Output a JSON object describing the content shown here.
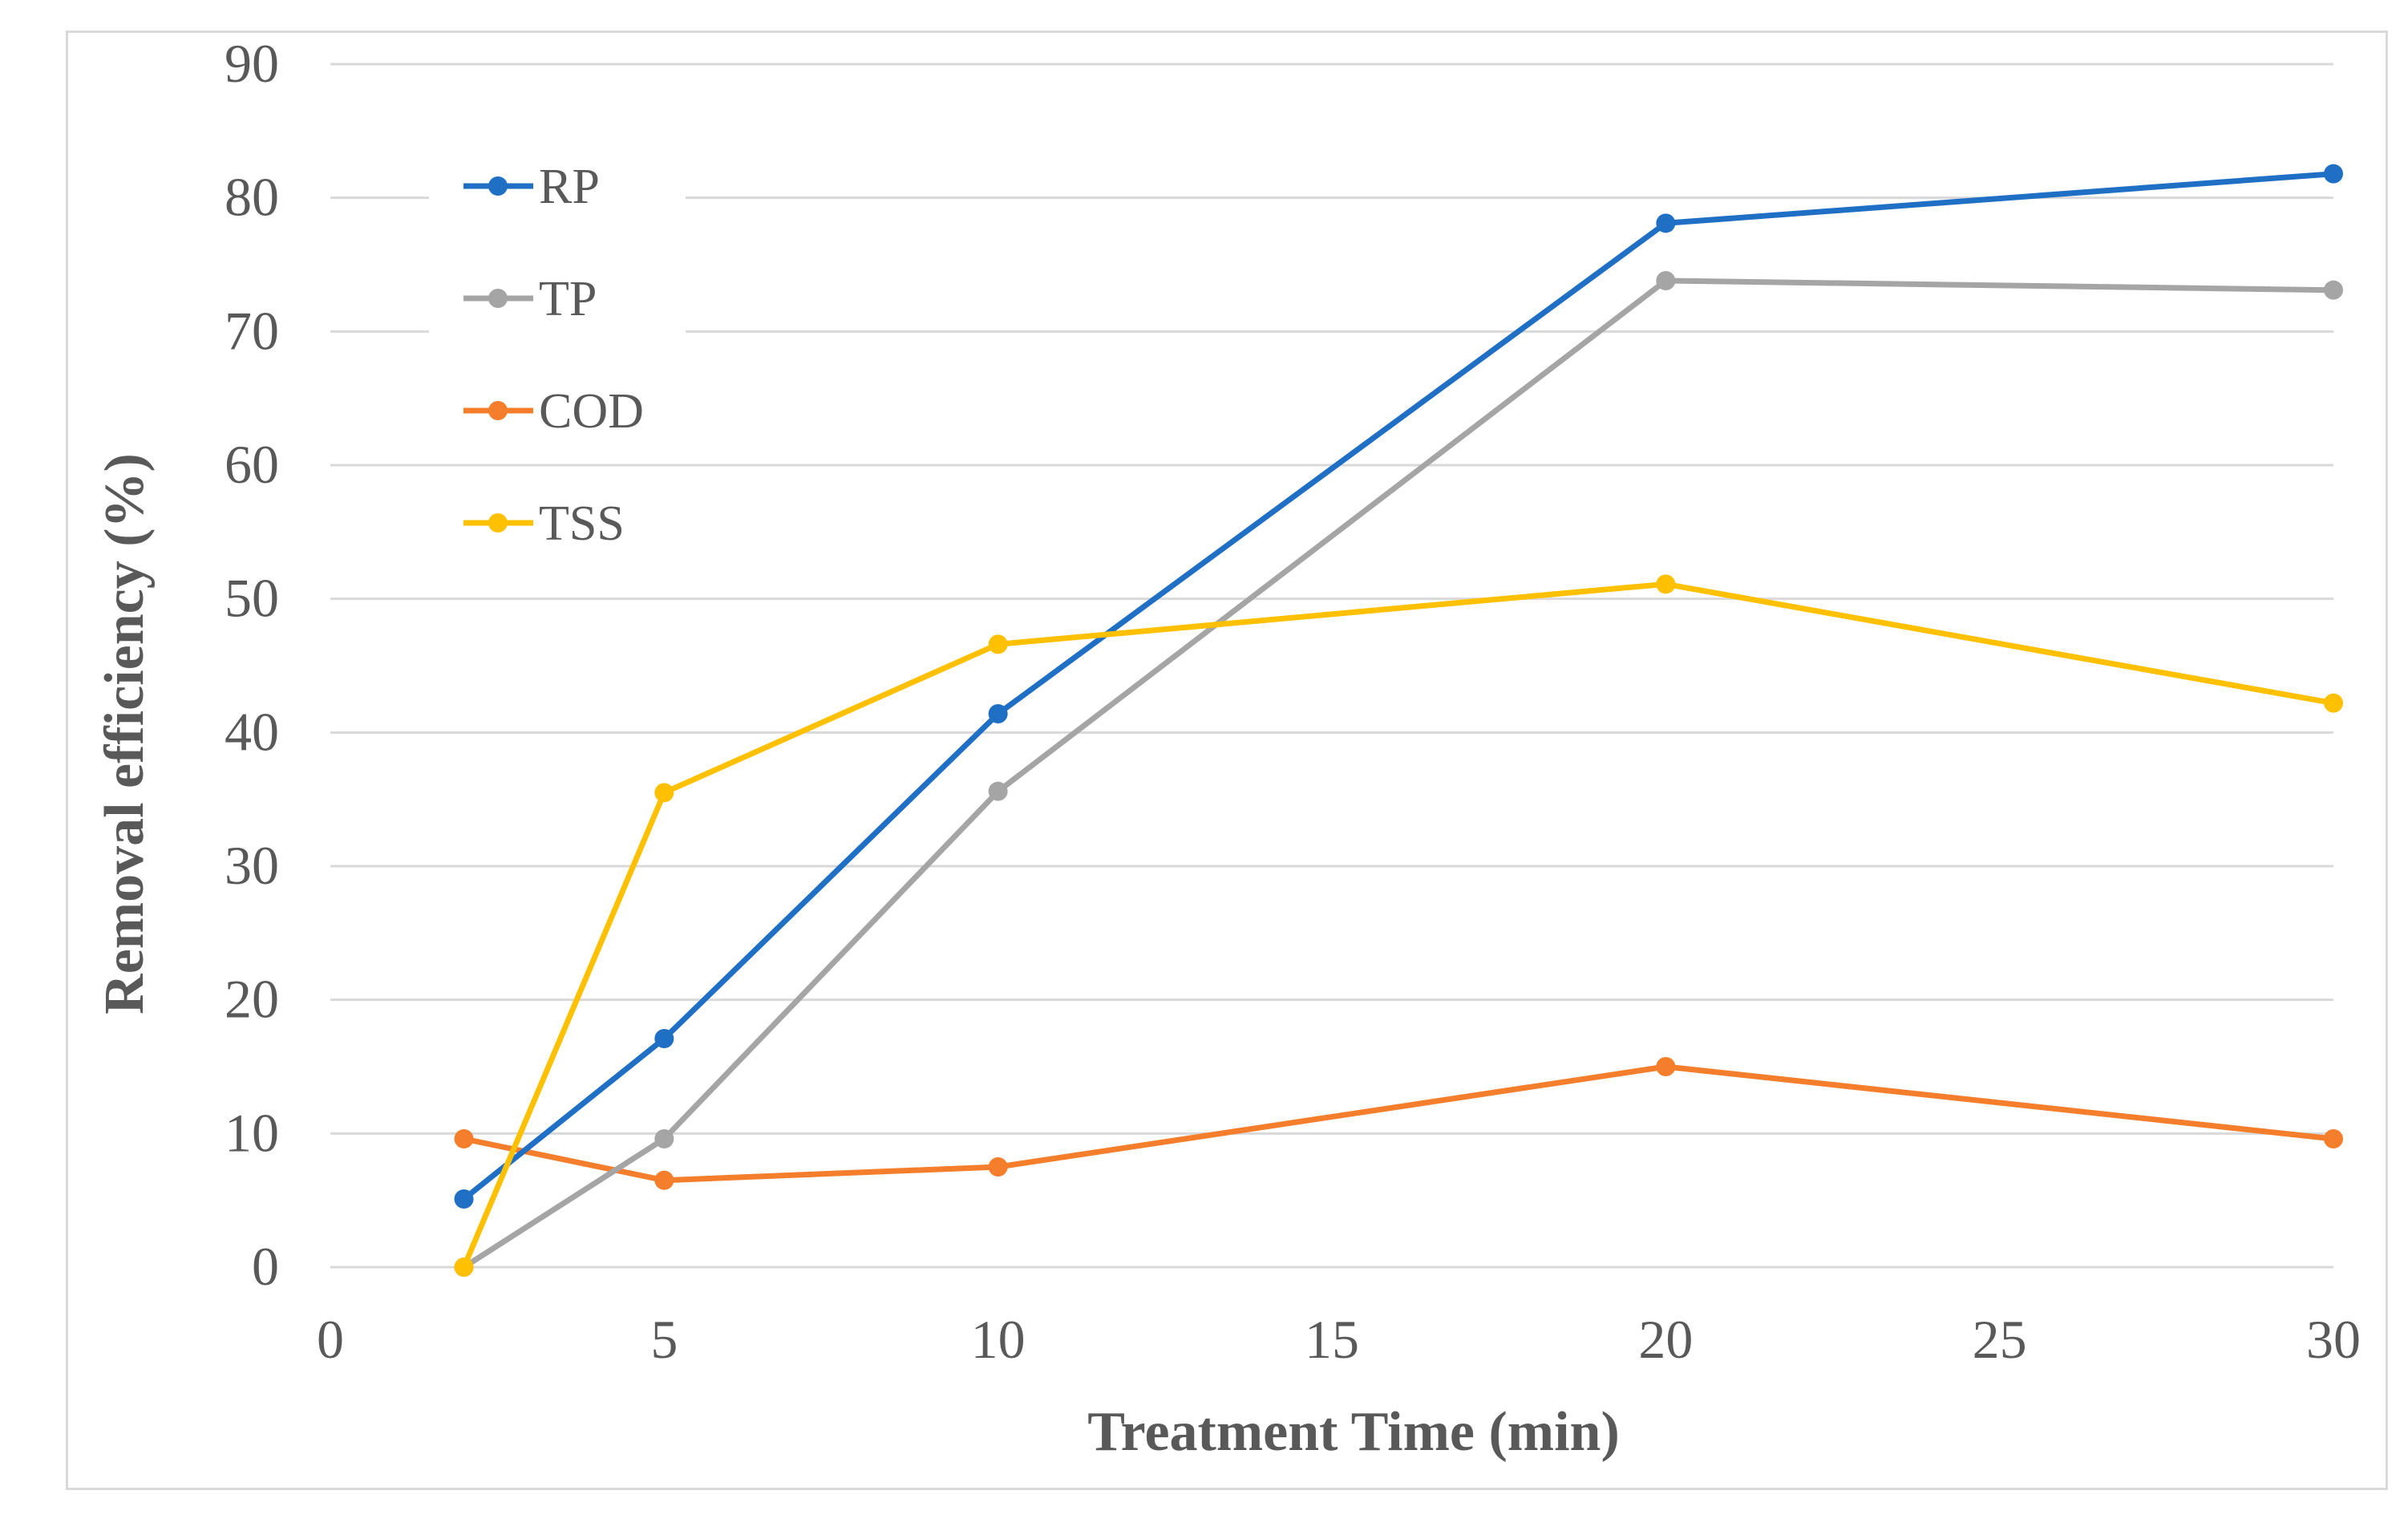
{
  "chart_data": {
    "type": "line",
    "title": "",
    "xlabel": "Treatment Time (min)",
    "ylabel": "Removal efficiency (%)",
    "x_ticks": [
      "0",
      "5",
      "10",
      "15",
      "20",
      "25",
      "30"
    ],
    "y_ticks": [
      "0",
      "10",
      "20",
      "30",
      "40",
      "50",
      "60",
      "70",
      "80",
      "90"
    ],
    "xlim": [
      0,
      30
    ],
    "ylim": [
      0,
      90
    ],
    "x_scale": "category-like (ticks evenly spaced)",
    "grid": "horizontal",
    "legend_position": "top-left",
    "x": [
      2,
      5,
      10,
      20,
      30
    ],
    "series": [
      {
        "name": "RP",
        "color": "#1F6FC5",
        "values": [
          5.1,
          17.1,
          41.4,
          78.1,
          81.8
        ]
      },
      {
        "name": "TP",
        "color": "#A5A5A5",
        "values": [
          0.0,
          9.6,
          35.6,
          73.8,
          73.1
        ]
      },
      {
        "name": "COD",
        "color": "#F47E2B",
        "values": [
          9.6,
          6.5,
          7.5,
          15.0,
          9.6
        ]
      },
      {
        "name": "TSS",
        "color": "#FFC000",
        "values": [
          0.0,
          35.5,
          46.6,
          51.1,
          42.2
        ]
      }
    ]
  }
}
